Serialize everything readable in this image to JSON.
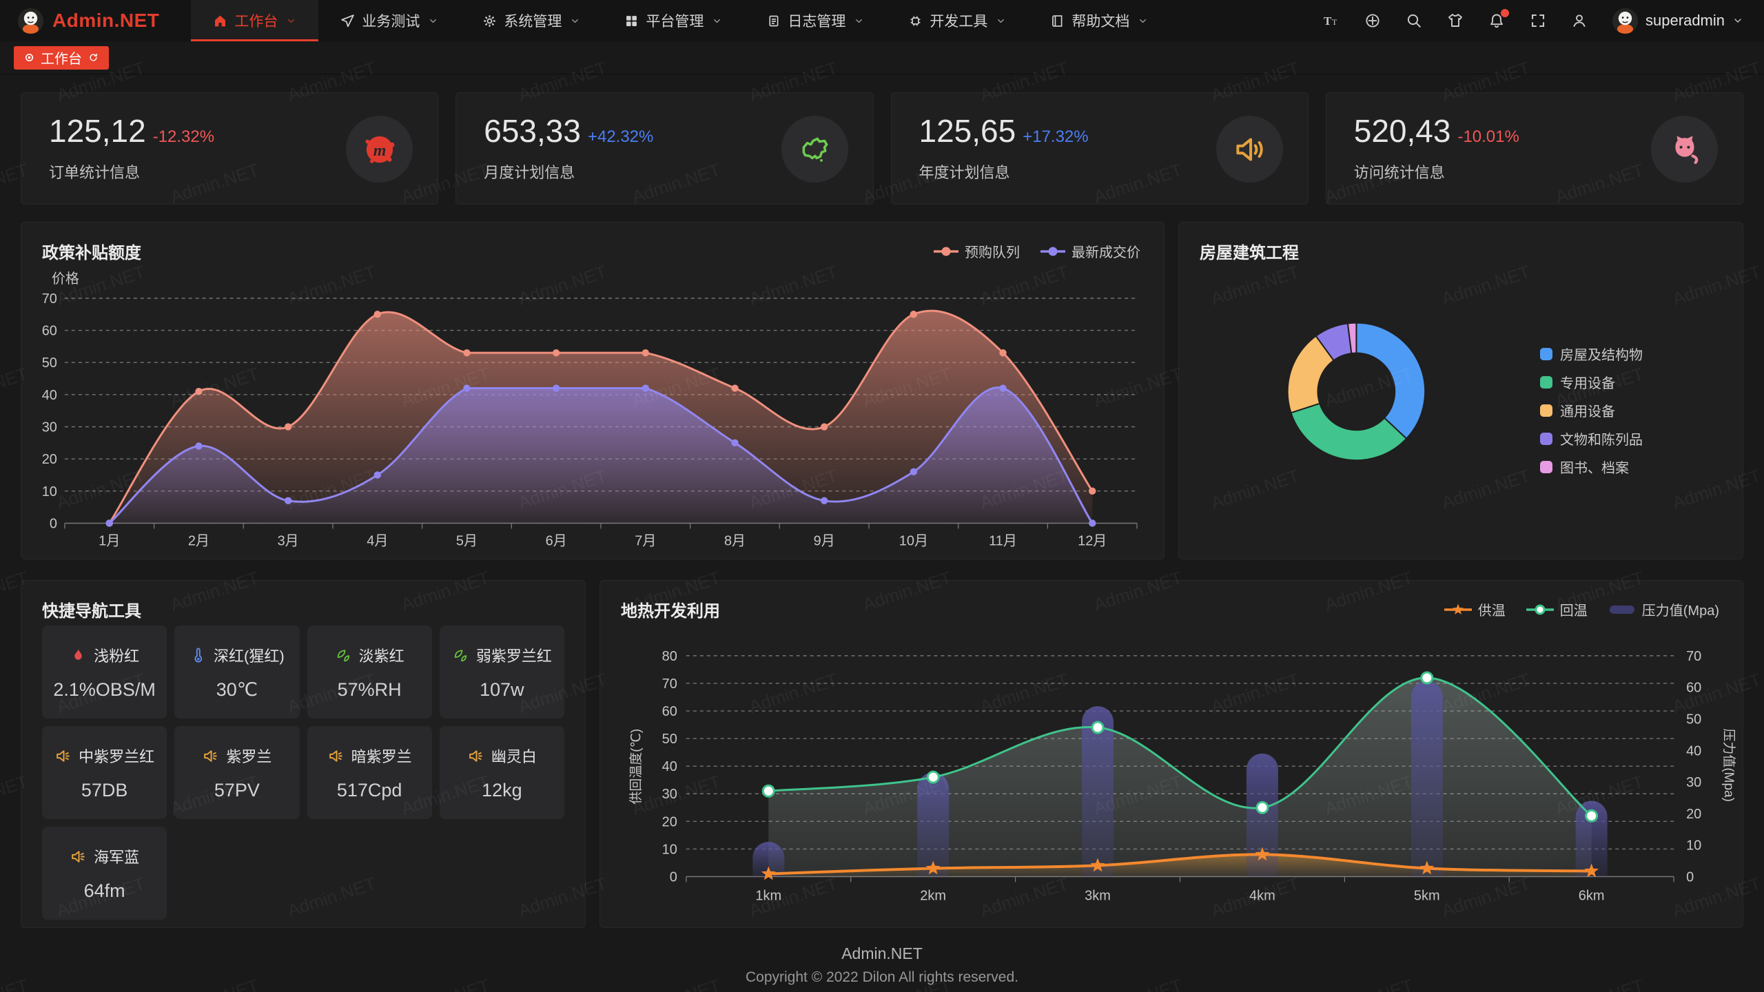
{
  "app": {
    "logo_text": "Admin.NET",
    "watermark": "Admin.NET"
  },
  "topnav": {
    "items": [
      {
        "label": "工作台",
        "icon": "home-icon",
        "active": true
      },
      {
        "label": "业务测试",
        "icon": "send-icon",
        "active": false
      },
      {
        "label": "系统管理",
        "icon": "gear-icon",
        "active": false
      },
      {
        "label": "平台管理",
        "icon": "grid-icon",
        "active": false
      },
      {
        "label": "日志管理",
        "icon": "log-icon",
        "active": false
      },
      {
        "label": "开发工具",
        "icon": "chip-icon",
        "active": false
      },
      {
        "label": "帮助文档",
        "icon": "book-icon",
        "active": false
      }
    ],
    "actions": [
      "font-size-icon",
      "language-icon",
      "search-icon",
      "theme-icon",
      "bell-icon",
      "fullscreen-icon",
      "user-icon"
    ],
    "user": {
      "name": "superadmin"
    }
  },
  "tagsbar": {
    "active_tag": "工作台"
  },
  "stat_cards": [
    {
      "value": "125,12",
      "delta": "-12.32%",
      "delta_color": "#f25757",
      "label": "订单统计信息",
      "icon": "meetup-icon",
      "icon_color": "#e03a2f"
    },
    {
      "value": "653,33",
      "delta": "+42.32%",
      "delta_color": "#4b7ef5",
      "label": "月度计划信息",
      "icon": "china-map-icon",
      "icon_color": "#6ecb4e"
    },
    {
      "value": "125,65",
      "delta": "+17.32%",
      "delta_color": "#4b7ef5",
      "label": "年度计划信息",
      "icon": "speaker-icon",
      "icon_color": "#e6a23c"
    },
    {
      "value": "520,43",
      "delta": "-10.01%",
      "delta_color": "#f25757",
      "label": "访问统计信息",
      "icon": "cat-icon",
      "icon_color": "#ef8a9e"
    }
  ],
  "quick_nav": {
    "title": "快捷导航工具",
    "items": [
      {
        "name": "浅粉红",
        "value": "2.1%OBS/M",
        "icon": "flame-icon",
        "icon_color": "#e04c4c"
      },
      {
        "name": "深红(猩红)",
        "value": "30℃",
        "icon": "thermometer-icon",
        "icon_color": "#5f8bef"
      },
      {
        "name": "淡紫红",
        "value": "57%RH",
        "icon": "leaf-icon",
        "icon_color": "#67c23a"
      },
      {
        "name": "弱紫罗兰红",
        "value": "107w",
        "icon": "leaf-icon",
        "icon_color": "#67c23a"
      },
      {
        "name": "中紫罗兰红",
        "value": "57DB",
        "icon": "horn-icon",
        "icon_color": "#e6a23c"
      },
      {
        "name": "紫罗兰",
        "value": "57PV",
        "icon": "horn-icon",
        "icon_color": "#e6a23c"
      },
      {
        "name": "暗紫罗兰",
        "value": "517Cpd",
        "icon": "horn-icon",
        "icon_color": "#e6a23c"
      },
      {
        "name": "幽灵白",
        "value": "12kg",
        "icon": "horn-icon",
        "icon_color": "#e6a23c"
      },
      {
        "name": "海军蓝",
        "value": "64fm",
        "icon": "horn-icon",
        "icon_color": "#e6a23c"
      }
    ]
  },
  "footer": {
    "line1": "Admin.NET",
    "line2": "Copyright © 2022 Dilon All rights reserved."
  },
  "chart_data": [
    {
      "id": "subsidy",
      "type": "area",
      "title": "政策补贴额度",
      "ylabel": "价格",
      "categories": [
        "1月",
        "2月",
        "3月",
        "4月",
        "5月",
        "6月",
        "7月",
        "8月",
        "9月",
        "10月",
        "11月",
        "12月"
      ],
      "series": [
        {
          "name": "预购队列",
          "color": "#f0907e",
          "values": [
            0,
            41,
            30,
            65,
            53,
            53,
            53,
            42,
            30,
            65,
            53,
            10
          ]
        },
        {
          "name": "最新成交价",
          "color": "#9186f0",
          "values": [
            0,
            24,
            7,
            15,
            42,
            42,
            42,
            25,
            7,
            16,
            42,
            0
          ]
        }
      ],
      "ylim": [
        0,
        70
      ],
      "ystep": 10,
      "grid": true,
      "legend_position": "top-right"
    },
    {
      "id": "housing",
      "type": "pie",
      "title": "房屋建筑工程",
      "labels": [
        "房屋及结构物",
        "专用设备",
        "通用设备",
        "文物和陈列品",
        "图书、档案"
      ],
      "values": [
        37,
        33,
        20,
        8,
        2
      ],
      "colors": [
        "#4e9bf5",
        "#41c48d",
        "#f8be6c",
        "#8d7ce8",
        "#e79be2"
      ],
      "legend_position": "right"
    },
    {
      "id": "geothermal",
      "type": "line+bar",
      "title": "地热开发利用",
      "categories": [
        "1km",
        "2km",
        "3km",
        "4km",
        "5km",
        "6km"
      ],
      "ylabel_left": "供回温度(℃)",
      "ylabel_right": "压力值(Mpa)",
      "ylim_left": [
        0,
        80
      ],
      "ylim_right": [
        0,
        70
      ],
      "series": [
        {
          "name": "供温",
          "type": "line",
          "axis": "left",
          "color": "#f5892e",
          "marker": "star",
          "values": [
            1,
            3,
            4,
            8,
            3,
            2
          ]
        },
        {
          "name": "回温",
          "type": "line",
          "axis": "left",
          "color": "#3fc48c",
          "marker": "circle",
          "values": [
            31,
            36,
            54,
            25,
            72,
            22
          ]
        },
        {
          "name": "压力值(Mpa)",
          "type": "bar",
          "axis": "right",
          "color": "#3c3c6e",
          "values": [
            11,
            33,
            54,
            39,
            62,
            24
          ]
        }
      ]
    }
  ]
}
